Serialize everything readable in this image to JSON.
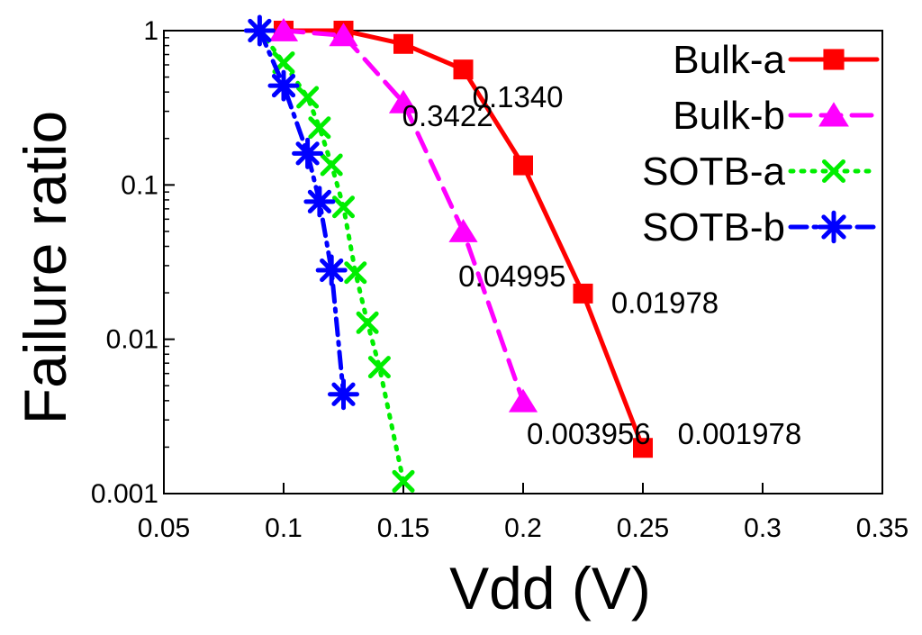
{
  "chart_data": {
    "type": "line",
    "title": "",
    "xlabel": "Vdd (V)",
    "ylabel": "Failure ratio",
    "xlim": [
      0.05,
      0.35
    ],
    "ylim": [
      0.001,
      1
    ],
    "yscale": "log",
    "grid": false,
    "legend_position": "top-right",
    "x_ticks": [
      {
        "value": 0.05,
        "label": "0.05"
      },
      {
        "value": 0.1,
        "label": "0.1"
      },
      {
        "value": 0.15,
        "label": "0.15"
      },
      {
        "value": 0.2,
        "label": "0.2"
      },
      {
        "value": 0.25,
        "label": "0.25"
      },
      {
        "value": 0.3,
        "label": "0.3"
      },
      {
        "value": 0.35,
        "label": "0.35"
      }
    ],
    "y_ticks": [
      {
        "value": 1,
        "label": "1"
      },
      {
        "value": 0.1,
        "label": "0.1"
      },
      {
        "value": 0.01,
        "label": "0.01"
      },
      {
        "value": 0.001,
        "label": "0.001"
      }
    ],
    "series": [
      {
        "name": "Bulk-a",
        "color": "#ff0000",
        "line_style": "solid",
        "marker": "square",
        "points": [
          [
            0.1,
            1.0
          ],
          [
            0.125,
            1.0
          ],
          [
            0.15,
            0.82
          ],
          [
            0.175,
            0.56
          ],
          [
            0.2,
            0.134
          ],
          [
            0.225,
            0.01978
          ],
          [
            0.25,
            0.001978
          ]
        ]
      },
      {
        "name": "Bulk-b",
        "color": "#ff00ff",
        "line_style": "dashed",
        "marker": "triangle",
        "points": [
          [
            0.1,
            1.0
          ],
          [
            0.125,
            0.93
          ],
          [
            0.15,
            0.3422
          ],
          [
            0.175,
            0.04995
          ],
          [
            0.2,
            0.003956
          ]
        ]
      },
      {
        "name": "SOTB-a",
        "color": "#00ee00",
        "line_style": "dotted",
        "marker": "x",
        "points": [
          [
            0.09,
            1.0
          ],
          [
            0.1,
            0.62
          ],
          [
            0.11,
            0.37
          ],
          [
            0.115,
            0.235
          ],
          [
            0.12,
            0.135
          ],
          [
            0.125,
            0.072
          ],
          [
            0.13,
            0.027
          ],
          [
            0.135,
            0.0128
          ],
          [
            0.14,
            0.0066
          ],
          [
            0.15,
            0.0012
          ]
        ]
      },
      {
        "name": "SOTB-b",
        "color": "#0000ff",
        "line_style": "dashdot",
        "marker": "star",
        "points": [
          [
            0.09,
            1.0
          ],
          [
            0.1,
            0.44
          ],
          [
            0.11,
            0.16
          ],
          [
            0.115,
            0.078
          ],
          [
            0.12,
            0.028
          ],
          [
            0.125,
            0.0044
          ]
        ]
      }
    ],
    "annotations": [
      {
        "text": "0.3422",
        "x": 0.1495,
        "y": 0.24
      },
      {
        "text": "0.1340",
        "x": 0.1788,
        "y": 0.32
      },
      {
        "text": "0.04995",
        "x": 0.173,
        "y": 0.022
      },
      {
        "text": "0.01978",
        "x": 0.2368,
        "y": 0.0148
      },
      {
        "text": "0.003956",
        "x": 0.2015,
        "y": 0.0021
      },
      {
        "text": "0.001978",
        "x": 0.2645,
        "y": 0.0021
      }
    ]
  }
}
